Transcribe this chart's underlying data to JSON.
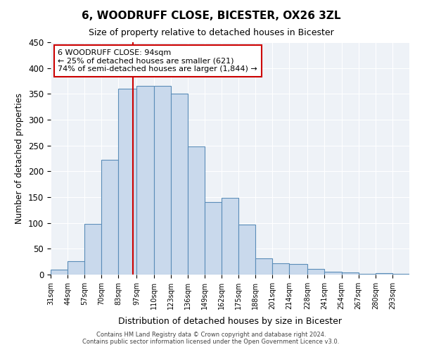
{
  "title": "6, WOODRUFF CLOSE, BICESTER, OX26 3ZL",
  "subtitle": "Size of property relative to detached houses in Bicester",
  "xlabel": "Distribution of detached houses by size in Bicester",
  "ylabel": "Number of detached properties",
  "bar_labels": [
    "31sqm",
    "44sqm",
    "57sqm",
    "70sqm",
    "83sqm",
    "97sqm",
    "110sqm",
    "123sqm",
    "136sqm",
    "149sqm",
    "162sqm",
    "175sqm",
    "188sqm",
    "201sqm",
    "214sqm",
    "228sqm",
    "241sqm",
    "254sqm",
    "267sqm",
    "280sqm",
    "293sqm"
  ],
  "bar_values": [
    9,
    26,
    98,
    222,
    360,
    365,
    365,
    350,
    248,
    140,
    148,
    97,
    31,
    22,
    21,
    11,
    6,
    4,
    2,
    3,
    2
  ],
  "bar_color": "#c9d9ec",
  "bar_edge_color": "#5b8db8",
  "ylim": [
    0,
    450
  ],
  "yticks": [
    0,
    50,
    100,
    150,
    200,
    250,
    300,
    350,
    400,
    450
  ],
  "vline_x": 94,
  "vline_color": "#cc0000",
  "annotation_line1": "6 WOODRUFF CLOSE: 94sqm",
  "annotation_line2": "← 25% of detached houses are smaller (621)",
  "annotation_line3": "74% of semi-detached houses are larger (1,844) →",
  "annotation_box_color": "#ffffff",
  "annotation_box_edge": "#cc0000",
  "footer1": "Contains HM Land Registry data © Crown copyright and database right 2024.",
  "footer2": "Contains public sector information licensed under the Open Government Licence v3.0.",
  "bin_edges": [
    31,
    44,
    57,
    70,
    83,
    97,
    110,
    123,
    136,
    149,
    162,
    175,
    188,
    201,
    214,
    228,
    241,
    254,
    267,
    280,
    293,
    306
  ],
  "background_color": "#eef2f7"
}
